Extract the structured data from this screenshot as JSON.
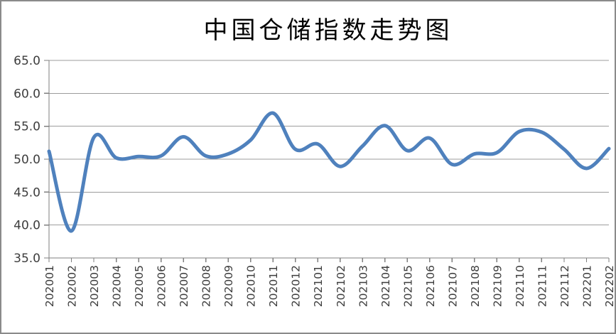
{
  "frame": {
    "background": "#FFFFFF",
    "border_color": "#8A8A8A"
  },
  "chart_data": {
    "type": "line",
    "title": "中国仓储指数走势图",
    "xlabel": "",
    "ylabel": "",
    "categories": [
      "202001",
      "202002",
      "202003",
      "202004",
      "202005",
      "202006",
      "202007",
      "202008",
      "202009",
      "202010",
      "202011",
      "202012",
      "202101",
      "202102",
      "202103",
      "202104",
      "202105",
      "202106",
      "202107",
      "202108",
      "202109",
      "202110",
      "202111",
      "202112",
      "202201",
      "202202"
    ],
    "values": [
      51.2,
      39.1,
      53.3,
      50.2,
      50.4,
      50.5,
      53.4,
      50.5,
      50.8,
      52.9,
      57.0,
      51.5,
      52.3,
      48.9,
      52.0,
      55.1,
      51.3,
      53.2,
      49.2,
      50.8,
      51.0,
      54.2,
      54.1,
      51.5,
      48.6,
      51.6
    ],
    "ylim": [
      35,
      65
    ],
    "ytick_step": 5,
    "ytick_labels": [
      "65.0",
      "60.0",
      "55.0",
      "50.0",
      "45.0",
      "40.0",
      "35.0"
    ],
    "grid": true,
    "smooth": true,
    "legend": "none",
    "line_color": "#4F81BD",
    "line_width": 5,
    "axis_color": "#7F7F7F",
    "gridline_color": "#9C9C9C",
    "tick_label_color": "#3D3D3D",
    "title_color": "#000000"
  }
}
